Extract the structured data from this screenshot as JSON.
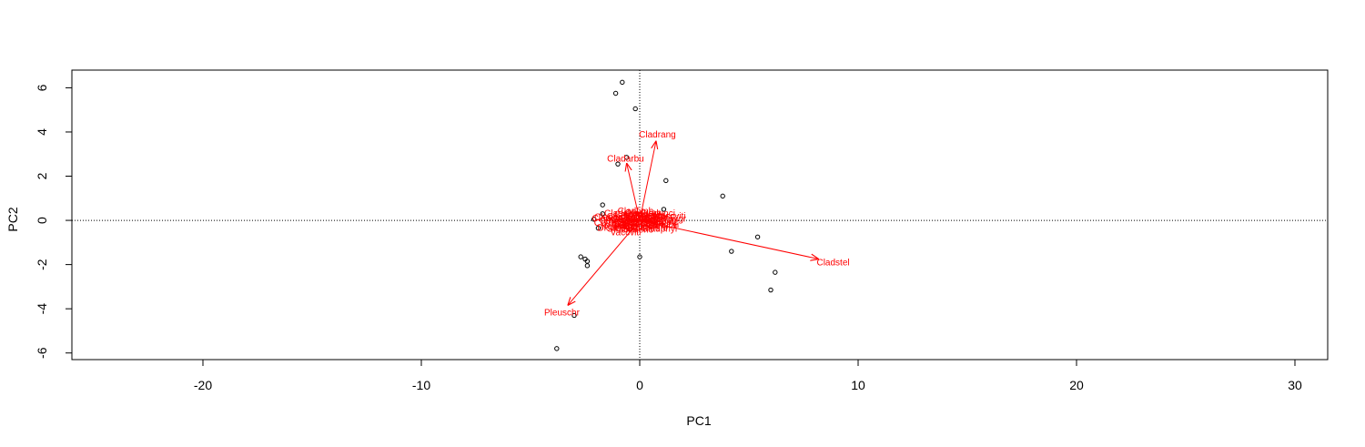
{
  "chart_data": {
    "type": "scatter",
    "subtype": "biplot",
    "title": "",
    "xlabel": "PC1",
    "ylabel": "PC2",
    "xlim": [
      -26,
      31.5
    ],
    "ylim": [
      -6.3,
      6.8
    ],
    "xticks": [
      -20,
      -10,
      0,
      10,
      20,
      30
    ],
    "yticks": [
      -6,
      -4,
      -2,
      0,
      2,
      4,
      6
    ],
    "xtick_labels": [
      "-20",
      "-10",
      "0",
      "10",
      "20",
      "30"
    ],
    "ytick_labels": [
      "-6",
      "-4",
      "-2",
      "0",
      "2",
      "4",
      "6"
    ],
    "reference_lines": {
      "x": 0,
      "y": 0,
      "style": "dotted"
    },
    "arrow_color": "#ff0000",
    "point_color": "#000000",
    "points": [
      {
        "x": -0.8,
        "y": 6.25
      },
      {
        "x": -1.1,
        "y": 5.75
      },
      {
        "x": -0.2,
        "y": 5.05
      },
      {
        "x": -0.6,
        "y": 2.85
      },
      {
        "x": -1.0,
        "y": 2.55
      },
      {
        "x": 1.2,
        "y": 1.8
      },
      {
        "x": 3.8,
        "y": 1.1
      },
      {
        "x": 1.1,
        "y": 0.5
      },
      {
        "x": -1.7,
        "y": 0.7
      },
      {
        "x": -1.7,
        "y": 0.3
      },
      {
        "x": -2.1,
        "y": 0.05
      },
      {
        "x": -1.9,
        "y": -0.35
      },
      {
        "x": 5.4,
        "y": -0.75
      },
      {
        "x": 4.2,
        "y": -1.4
      },
      {
        "x": 0.0,
        "y": -1.65
      },
      {
        "x": -2.7,
        "y": -1.65
      },
      {
        "x": -2.5,
        "y": -1.75
      },
      {
        "x": -2.4,
        "y": -1.85
      },
      {
        "x": -2.4,
        "y": -2.05
      },
      {
        "x": 6.2,
        "y": -2.35
      },
      {
        "x": 6.0,
        "y": -3.15
      },
      {
        "x": -3.0,
        "y": -4.3
      },
      {
        "x": -3.8,
        "y": -5.8
      }
    ],
    "arrows": [
      {
        "label": "Cladrang",
        "x": 0.75,
        "y": 3.6
      },
      {
        "label": "Cladarbu",
        "x": -0.6,
        "y": 2.6
      },
      {
        "label": "Cladstel",
        "x": 8.2,
        "y": -1.75
      },
      {
        "label": "Pleuschr",
        "x": -3.3,
        "y": -3.85
      },
      {
        "label": "Vaccviti",
        "x": -0.6,
        "y": -0.5
      },
      {
        "label": "Dicrfusc",
        "x": -1.1,
        "y": -0.3
      }
    ],
    "cluster_labels": [
      "Callvulg",
      "Empenigr",
      "Vaccviti",
      "Dicrfusc",
      "Cladunci",
      "Cladcorn",
      "Cladgrac",
      "Cladfimb",
      "Cladcris",
      "Cladchlo",
      "Cladbotr",
      "Cladamau",
      "Cladsp",
      "Cetreric",
      "Cetrisla",
      "Flavniva",
      "Nepharct",
      "Stersp",
      "Peltapht",
      "Icmaeric",
      "Cladcerv",
      "Claddefo",
      "Cladphyl",
      "Pohlnuta",
      "Ptilcili",
      "Barbhatc"
    ]
  }
}
